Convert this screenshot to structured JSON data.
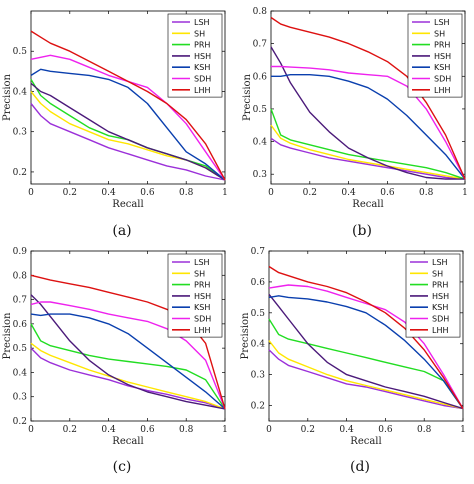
{
  "chart_data": [
    {
      "type": "line",
      "caption": "(a)",
      "xlabel": "Recall",
      "ylabel": "Precision",
      "xlim": [
        0,
        1
      ],
      "ylim": [
        0.17,
        0.6
      ],
      "xticks": [
        "0",
        "0.2",
        "0.4",
        "0.6",
        "0.8",
        "1"
      ],
      "yticks": [
        "0.2",
        "0.3",
        "0.4",
        "0.5"
      ],
      "legend_position": "top-right",
      "series": [
        {
          "name": "LSH",
          "color": "#9b30d9",
          "x": [
            0,
            0.05,
            0.1,
            0.2,
            0.3,
            0.4,
            0.5,
            0.6,
            0.7,
            0.8,
            0.9,
            1.0
          ],
          "y": [
            0.37,
            0.34,
            0.32,
            0.3,
            0.28,
            0.26,
            0.245,
            0.23,
            0.215,
            0.205,
            0.19,
            0.18
          ]
        },
        {
          "name": "SH",
          "color": "#ffe600",
          "x": [
            0,
            0.05,
            0.1,
            0.2,
            0.3,
            0.4,
            0.5,
            0.6,
            0.7,
            0.8,
            0.9,
            1.0
          ],
          "y": [
            0.4,
            0.37,
            0.35,
            0.32,
            0.3,
            0.28,
            0.27,
            0.255,
            0.24,
            0.23,
            0.21,
            0.18
          ]
        },
        {
          "name": "PRH",
          "color": "#22dd22",
          "x": [
            0,
            0.05,
            0.1,
            0.2,
            0.3,
            0.4,
            0.5,
            0.6,
            0.7,
            0.8,
            0.9,
            1.0
          ],
          "y": [
            0.43,
            0.39,
            0.37,
            0.34,
            0.31,
            0.29,
            0.28,
            0.26,
            0.245,
            0.23,
            0.215,
            0.18
          ]
        },
        {
          "name": "HSH",
          "color": "#4b1a7a",
          "x": [
            0,
            0.05,
            0.1,
            0.2,
            0.3,
            0.4,
            0.5,
            0.6,
            0.7,
            0.8,
            0.9,
            1.0
          ],
          "y": [
            0.42,
            0.4,
            0.39,
            0.36,
            0.33,
            0.3,
            0.28,
            0.26,
            0.245,
            0.23,
            0.21,
            0.18
          ]
        },
        {
          "name": "KSH",
          "color": "#0a3fae",
          "x": [
            0,
            0.05,
            0.1,
            0.2,
            0.3,
            0.4,
            0.5,
            0.6,
            0.7,
            0.8,
            0.9,
            1.0
          ],
          "y": [
            0.44,
            0.455,
            0.45,
            0.445,
            0.44,
            0.43,
            0.41,
            0.37,
            0.31,
            0.25,
            0.22,
            0.18
          ]
        },
        {
          "name": "SDH",
          "color": "#ee22ee",
          "x": [
            0,
            0.05,
            0.1,
            0.2,
            0.3,
            0.4,
            0.5,
            0.6,
            0.7,
            0.8,
            0.9,
            1.0
          ],
          "y": [
            0.48,
            0.485,
            0.49,
            0.48,
            0.46,
            0.44,
            0.425,
            0.41,
            0.37,
            0.32,
            0.25,
            0.18
          ]
        },
        {
          "name": "LHH",
          "color": "#dd1111",
          "x": [
            0,
            0.05,
            0.1,
            0.2,
            0.3,
            0.4,
            0.5,
            0.6,
            0.7,
            0.8,
            0.9,
            1.0
          ],
          "y": [
            0.55,
            0.535,
            0.52,
            0.5,
            0.475,
            0.45,
            0.425,
            0.4,
            0.37,
            0.33,
            0.27,
            0.18
          ]
        }
      ]
    },
    {
      "type": "line",
      "caption": "(b)",
      "xlabel": "Recall",
      "ylabel": "Precision",
      "xlim": [
        0,
        1
      ],
      "ylim": [
        0.27,
        0.8
      ],
      "xticks": [
        "0",
        "0.2",
        "0.4",
        "0.6",
        "0.8",
        "1"
      ],
      "yticks": [
        "0.3",
        "0.4",
        "0.5",
        "0.6",
        "0.7",
        "0.8"
      ],
      "legend_position": "top-right",
      "series": [
        {
          "name": "LSH",
          "color": "#9b30d9",
          "x": [
            0,
            0.05,
            0.1,
            0.2,
            0.3,
            0.4,
            0.5,
            0.6,
            0.7,
            0.8,
            0.9,
            1.0
          ],
          "y": [
            0.41,
            0.39,
            0.38,
            0.365,
            0.35,
            0.34,
            0.33,
            0.32,
            0.31,
            0.3,
            0.29,
            0.285
          ]
        },
        {
          "name": "SH",
          "color": "#ffe600",
          "x": [
            0,
            0.05,
            0.1,
            0.2,
            0.3,
            0.4,
            0.5,
            0.6,
            0.7,
            0.8,
            0.9,
            1.0
          ],
          "y": [
            0.45,
            0.41,
            0.395,
            0.375,
            0.36,
            0.345,
            0.335,
            0.325,
            0.315,
            0.305,
            0.295,
            0.285
          ]
        },
        {
          "name": "PRH",
          "color": "#22dd22",
          "x": [
            0,
            0.05,
            0.1,
            0.2,
            0.3,
            0.4,
            0.5,
            0.6,
            0.7,
            0.8,
            0.9,
            1.0
          ],
          "y": [
            0.5,
            0.42,
            0.405,
            0.39,
            0.375,
            0.36,
            0.35,
            0.34,
            0.33,
            0.32,
            0.305,
            0.285
          ]
        },
        {
          "name": "HSH",
          "color": "#4b1a7a",
          "x": [
            0,
            0.05,
            0.1,
            0.2,
            0.3,
            0.4,
            0.5,
            0.6,
            0.7,
            0.8,
            0.9,
            1.0
          ],
          "y": [
            0.69,
            0.64,
            0.58,
            0.49,
            0.43,
            0.38,
            0.35,
            0.325,
            0.305,
            0.29,
            0.285,
            0.285
          ]
        },
        {
          "name": "KSH",
          "color": "#0a3fae",
          "x": [
            0,
            0.05,
            0.1,
            0.2,
            0.3,
            0.4,
            0.5,
            0.6,
            0.7,
            0.8,
            0.9,
            1.0
          ],
          "y": [
            0.6,
            0.6,
            0.605,
            0.605,
            0.6,
            0.585,
            0.565,
            0.53,
            0.48,
            0.42,
            0.36,
            0.285
          ]
        },
        {
          "name": "SDH",
          "color": "#ee22ee",
          "x": [
            0,
            0.05,
            0.1,
            0.2,
            0.3,
            0.4,
            0.5,
            0.6,
            0.7,
            0.8,
            0.9,
            1.0
          ],
          "y": [
            0.63,
            0.63,
            0.628,
            0.625,
            0.62,
            0.61,
            0.605,
            0.6,
            0.57,
            0.5,
            0.4,
            0.285
          ]
        },
        {
          "name": "LHH",
          "color": "#dd1111",
          "x": [
            0,
            0.05,
            0.1,
            0.2,
            0.3,
            0.4,
            0.5,
            0.6,
            0.7,
            0.8,
            0.9,
            1.0
          ],
          "y": [
            0.78,
            0.76,
            0.75,
            0.735,
            0.72,
            0.7,
            0.675,
            0.645,
            0.6,
            0.52,
            0.42,
            0.285
          ]
        }
      ]
    },
    {
      "type": "line",
      "caption": "(c)",
      "xlabel": "Recall",
      "ylabel": "Precision",
      "xlim": [
        0,
        1
      ],
      "ylim": [
        0.2,
        0.9
      ],
      "xticks": [
        "0",
        "0.2",
        "0.4",
        "0.6",
        "0.8",
        "1"
      ],
      "yticks": [
        "0.2",
        "0.3",
        "0.4",
        "0.5",
        "0.6",
        "0.7",
        "0.8",
        "0.9"
      ],
      "legend_position": "top-right",
      "series": [
        {
          "name": "LSH",
          "color": "#9b30d9",
          "x": [
            0,
            0.05,
            0.1,
            0.2,
            0.3,
            0.4,
            0.5,
            0.6,
            0.7,
            0.8,
            0.9,
            1.0
          ],
          "y": [
            0.5,
            0.46,
            0.44,
            0.41,
            0.39,
            0.37,
            0.345,
            0.325,
            0.31,
            0.29,
            0.275,
            0.25
          ]
        },
        {
          "name": "SH",
          "color": "#ffe600",
          "x": [
            0,
            0.05,
            0.1,
            0.2,
            0.3,
            0.4,
            0.5,
            0.6,
            0.7,
            0.8,
            0.9,
            1.0
          ],
          "y": [
            0.52,
            0.49,
            0.47,
            0.44,
            0.41,
            0.385,
            0.36,
            0.34,
            0.32,
            0.3,
            0.28,
            0.25
          ]
        },
        {
          "name": "PRH",
          "color": "#22dd22",
          "x": [
            0,
            0.05,
            0.1,
            0.2,
            0.3,
            0.4,
            0.5,
            0.6,
            0.7,
            0.8,
            0.9,
            1.0
          ],
          "y": [
            0.6,
            0.53,
            0.51,
            0.49,
            0.47,
            0.455,
            0.445,
            0.435,
            0.425,
            0.41,
            0.37,
            0.25
          ]
        },
        {
          "name": "HSH",
          "color": "#4b1a7a",
          "x": [
            0,
            0.05,
            0.1,
            0.2,
            0.3,
            0.4,
            0.5,
            0.6,
            0.7,
            0.8,
            0.9,
            1.0
          ],
          "y": [
            0.72,
            0.68,
            0.63,
            0.53,
            0.45,
            0.39,
            0.35,
            0.32,
            0.3,
            0.28,
            0.265,
            0.25
          ]
        },
        {
          "name": "KSH",
          "color": "#0a3fae",
          "x": [
            0,
            0.05,
            0.1,
            0.2,
            0.3,
            0.4,
            0.5,
            0.6,
            0.7,
            0.8,
            0.9,
            1.0
          ],
          "y": [
            0.64,
            0.635,
            0.64,
            0.64,
            0.625,
            0.6,
            0.56,
            0.5,
            0.44,
            0.38,
            0.32,
            0.25
          ]
        },
        {
          "name": "SDH",
          "color": "#ee22ee",
          "x": [
            0,
            0.05,
            0.1,
            0.2,
            0.3,
            0.4,
            0.5,
            0.6,
            0.7,
            0.8,
            0.9,
            1.0
          ],
          "y": [
            0.68,
            0.69,
            0.69,
            0.675,
            0.66,
            0.64,
            0.625,
            0.61,
            0.58,
            0.53,
            0.45,
            0.25
          ]
        },
        {
          "name": "LHH",
          "color": "#dd1111",
          "x": [
            0,
            0.05,
            0.1,
            0.2,
            0.3,
            0.4,
            0.5,
            0.6,
            0.7,
            0.8,
            0.9,
            1.0
          ],
          "y": [
            0.8,
            0.79,
            0.78,
            0.765,
            0.75,
            0.73,
            0.71,
            0.69,
            0.66,
            0.62,
            0.52,
            0.25
          ]
        }
      ]
    },
    {
      "type": "line",
      "caption": "(d)",
      "xlabel": "Recall",
      "ylabel": "Precision",
      "xlim": [
        0,
        1
      ],
      "ylim": [
        0.15,
        0.7
      ],
      "xticks": [
        "0",
        "0.2",
        "0.4",
        "0.6",
        "0.8",
        "1"
      ],
      "yticks": [
        "0.2",
        "0.3",
        "0.4",
        "0.5",
        "0.6",
        "0.7"
      ],
      "legend_position": "top-right",
      "series": [
        {
          "name": "LSH",
          "color": "#9b30d9",
          "x": [
            0,
            0.05,
            0.1,
            0.2,
            0.3,
            0.4,
            0.5,
            0.6,
            0.7,
            0.8,
            0.9,
            1.0
          ],
          "y": [
            0.38,
            0.35,
            0.33,
            0.31,
            0.29,
            0.27,
            0.26,
            0.245,
            0.23,
            0.215,
            0.2,
            0.19
          ]
        },
        {
          "name": "SH",
          "color": "#ffe600",
          "x": [
            0,
            0.05,
            0.1,
            0.2,
            0.3,
            0.4,
            0.5,
            0.6,
            0.7,
            0.8,
            0.9,
            1.0
          ],
          "y": [
            0.41,
            0.37,
            0.35,
            0.325,
            0.3,
            0.28,
            0.265,
            0.25,
            0.235,
            0.22,
            0.205,
            0.19
          ]
        },
        {
          "name": "PRH",
          "color": "#22dd22",
          "x": [
            0,
            0.05,
            0.1,
            0.2,
            0.3,
            0.4,
            0.5,
            0.6,
            0.7,
            0.8,
            0.9,
            1.0
          ],
          "y": [
            0.48,
            0.43,
            0.415,
            0.4,
            0.385,
            0.37,
            0.355,
            0.34,
            0.325,
            0.31,
            0.28,
            0.19
          ]
        },
        {
          "name": "HSH",
          "color": "#4b1a7a",
          "x": [
            0,
            0.05,
            0.1,
            0.2,
            0.3,
            0.4,
            0.5,
            0.6,
            0.7,
            0.8,
            0.9,
            1.0
          ],
          "y": [
            0.56,
            0.52,
            0.48,
            0.4,
            0.34,
            0.3,
            0.28,
            0.26,
            0.245,
            0.23,
            0.21,
            0.19
          ]
        },
        {
          "name": "KSH",
          "color": "#0a3fae",
          "x": [
            0,
            0.05,
            0.1,
            0.2,
            0.3,
            0.4,
            0.5,
            0.6,
            0.7,
            0.8,
            0.9,
            1.0
          ],
          "y": [
            0.55,
            0.555,
            0.55,
            0.545,
            0.535,
            0.52,
            0.5,
            0.46,
            0.41,
            0.35,
            0.28,
            0.19
          ]
        },
        {
          "name": "SDH",
          "color": "#ee22ee",
          "x": [
            0,
            0.05,
            0.1,
            0.2,
            0.3,
            0.4,
            0.5,
            0.6,
            0.7,
            0.8,
            0.9,
            1.0
          ],
          "y": [
            0.58,
            0.585,
            0.59,
            0.585,
            0.57,
            0.55,
            0.53,
            0.51,
            0.47,
            0.4,
            0.3,
            0.19
          ]
        },
        {
          "name": "LHH",
          "color": "#dd1111",
          "x": [
            0,
            0.05,
            0.1,
            0.2,
            0.3,
            0.4,
            0.5,
            0.6,
            0.7,
            0.8,
            0.9,
            1.0
          ],
          "y": [
            0.65,
            0.63,
            0.62,
            0.6,
            0.585,
            0.565,
            0.535,
            0.5,
            0.45,
            0.38,
            0.29,
            0.19
          ]
        }
      ]
    }
  ]
}
